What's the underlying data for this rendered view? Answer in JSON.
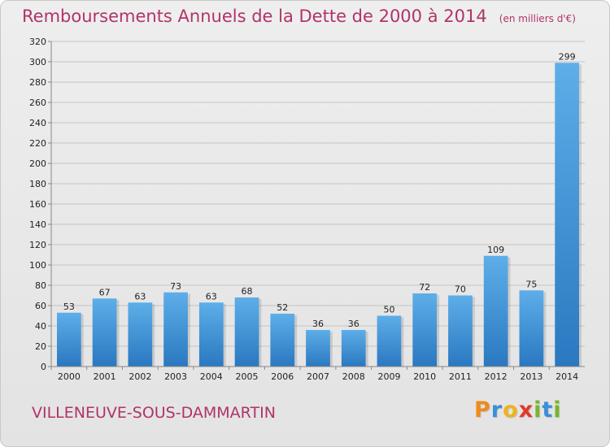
{
  "header": {
    "title": "Remboursements Annuels de la Dette de 2000 à 2014",
    "subtitle": "(en milliers d'€)"
  },
  "footer": {
    "city": "VILLENEUVE-SOUS-DAMMARTIN",
    "logo": [
      {
        "char": "P",
        "color": "#f08a1c"
      },
      {
        "char": "r",
        "color": "#3a8fd8"
      },
      {
        "char": "o",
        "color": "#f0b21c"
      },
      {
        "char": "x",
        "color": "#e03a2a"
      },
      {
        "char": "i",
        "color": "#7ab42a"
      },
      {
        "char": "t",
        "color": "#3a8fd8"
      },
      {
        "char": "i",
        "color": "#7ab42a"
      }
    ]
  },
  "chart_data": {
    "type": "bar",
    "title": "Remboursements Annuels de la Dette de 2000 à 2014",
    "subtitle": "(en milliers d'€)",
    "categories": [
      "2000",
      "2001",
      "2002",
      "2003",
      "2004",
      "2005",
      "2006",
      "2007",
      "2008",
      "2009",
      "2010",
      "2011",
      "2012",
      "2013",
      "2014"
    ],
    "values": [
      53,
      67,
      63,
      73,
      63,
      68,
      52,
      36,
      36,
      50,
      72,
      70,
      109,
      75,
      299
    ],
    "ylim": [
      0,
      320
    ],
    "yticks": [
      0,
      20,
      40,
      60,
      80,
      100,
      120,
      140,
      160,
      180,
      200,
      220,
      240,
      260,
      280,
      300,
      320
    ],
    "grid": true,
    "bar_color": "#3a8fd8"
  }
}
